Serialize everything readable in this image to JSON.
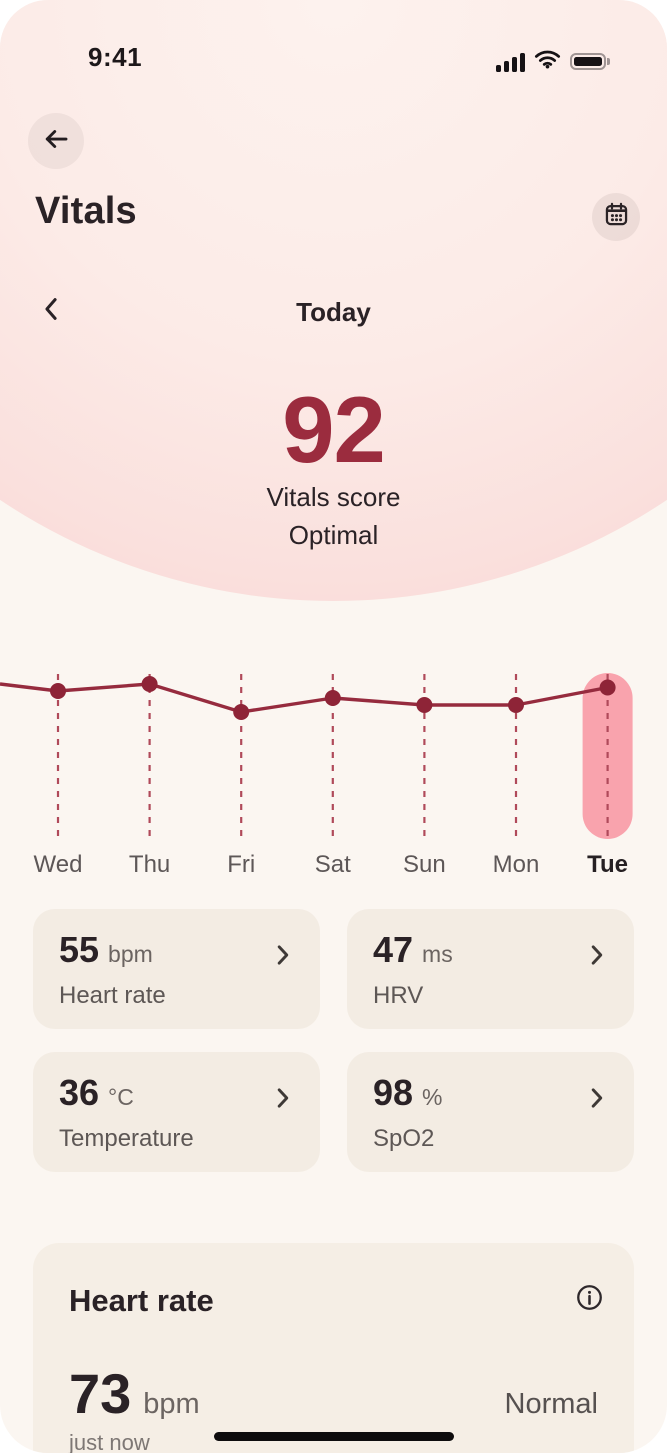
{
  "status_bar": {
    "time": "9:41"
  },
  "header": {
    "title": "Vitals"
  },
  "date_nav": {
    "label": "Today"
  },
  "score": {
    "value": "92",
    "label": "Vitals score",
    "status": "Optimal"
  },
  "chart_data": {
    "type": "line",
    "categories": [
      "Wed",
      "Thu",
      "Fri",
      "Sat",
      "Sun",
      "Mon",
      "Tue"
    ],
    "values": [
      91,
      93,
      85,
      89,
      87,
      87,
      92
    ],
    "edge_entry_value": 93,
    "selected_category": "Tue",
    "selected_index": 6,
    "ylim": [
      80,
      100
    ],
    "grid": "dashed-vertical",
    "legend": false,
    "colors": {
      "line": "#962b3e",
      "dot": "#8e2437",
      "dashed": "#b04a5a",
      "highlight": "#f9a3ad"
    }
  },
  "metric_cards": [
    {
      "value": "55",
      "unit": "bpm",
      "label": "Heart rate"
    },
    {
      "value": "47",
      "unit": "ms",
      "label": "HRV"
    },
    {
      "value": "36",
      "unit": "°C",
      "label": "Temperature"
    },
    {
      "value": "98",
      "unit": "%",
      "label": "SpO2"
    }
  ],
  "detail_card": {
    "title": "Heart rate",
    "value": "73",
    "unit": "bpm",
    "status": "Normal",
    "timestamp": "just now"
  },
  "colors": {
    "page_bg": "#fbf6f1",
    "hero_pink": "#f8d2d1",
    "score_maroon": "#9b2c3e",
    "card_beige": "#f3ece3",
    "highlight_pink": "#f9a3ad",
    "text_dark": "#2a2226",
    "text_gray": "#5d5755"
  }
}
